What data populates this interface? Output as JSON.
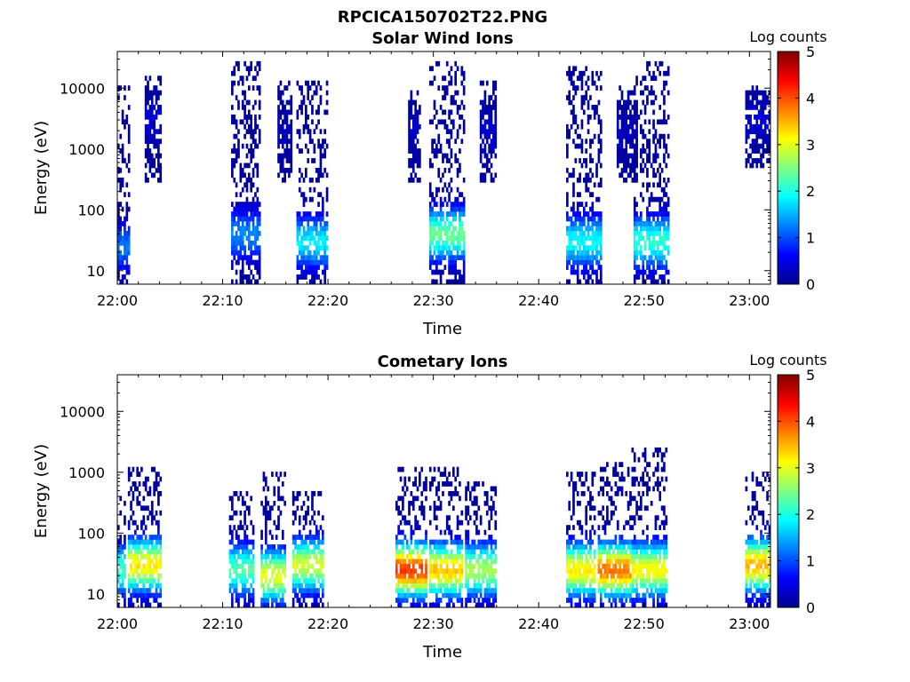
{
  "figure": {
    "title": "RPCICA150702T22.PNG"
  },
  "colors": {
    "colormap": "jet",
    "background": "#ffffff",
    "axes": "#000000"
  },
  "chart_data": [
    {
      "type": "heatmap",
      "title": "Solar Wind Ions",
      "xlabel": "Time",
      "ylabel": "Energy (eV)",
      "x_ticks": [
        "22:00",
        "22:10",
        "22:20",
        "22:30",
        "22:40",
        "22:50",
        "23:00"
      ],
      "y_ticks": [
        "10",
        "100",
        "1000",
        "10000"
      ],
      "y_scale": "log",
      "ylim": [
        6,
        40000
      ],
      "xlim_minutes": [
        0,
        62
      ],
      "colorbar": {
        "label": "Log counts",
        "ticks": [
          "0",
          "1",
          "2",
          "3",
          "4",
          "5"
        ],
        "range": [
          0,
          5
        ]
      },
      "bursts": [
        {
          "t_start": 0,
          "t_end": 1.2,
          "e_low": 6,
          "e_high": 12000,
          "peak": 1.2,
          "peak_energy": 25
        },
        {
          "t_start": 2.6,
          "t_end": 4.2,
          "e_low": 300,
          "e_high": 16000,
          "peak": 0.4,
          "peak_energy": 3000
        },
        {
          "t_start": 10.8,
          "t_end": 13.6,
          "e_low": 6,
          "e_high": 30000,
          "peak": 1.3,
          "peak_energy": 40
        },
        {
          "t_start": 15.2,
          "t_end": 16.6,
          "e_low": 300,
          "e_high": 14000,
          "peak": 0.3,
          "peak_energy": 2000
        },
        {
          "t_start": 17.0,
          "t_end": 20.0,
          "e_low": 6,
          "e_high": 14000,
          "peak": 1.8,
          "peak_energy": 30
        },
        {
          "t_start": 27.6,
          "t_end": 28.8,
          "e_low": 300,
          "e_high": 10000,
          "peak": 0.3,
          "peak_energy": 2000
        },
        {
          "t_start": 29.6,
          "t_end": 33.0,
          "e_low": 6,
          "e_high": 28000,
          "peak": 2.4,
          "peak_energy": 40
        },
        {
          "t_start": 34.4,
          "t_end": 36.0,
          "e_low": 300,
          "e_high": 14000,
          "peak": 0.4,
          "peak_energy": 2000
        },
        {
          "t_start": 42.6,
          "t_end": 46.0,
          "e_low": 6,
          "e_high": 24000,
          "peak": 1.9,
          "peak_energy": 30
        },
        {
          "t_start": 47.4,
          "t_end": 49.4,
          "e_low": 300,
          "e_high": 12000,
          "peak": 0.3,
          "peak_energy": 2000
        },
        {
          "t_start": 49.0,
          "t_end": 52.4,
          "e_low": 6,
          "e_high": 30000,
          "peak": 2.1,
          "peak_energy": 30
        },
        {
          "t_start": 59.6,
          "t_end": 62.0,
          "e_low": 500,
          "e_high": 12000,
          "peak": 0.4,
          "peak_energy": 3000
        }
      ]
    },
    {
      "type": "heatmap",
      "title": "Cometary Ions",
      "xlabel": "Time",
      "ylabel": "Energy (eV)",
      "x_ticks": [
        "22:00",
        "22:10",
        "22:20",
        "22:30",
        "22:40",
        "22:50",
        "23:00"
      ],
      "y_ticks": [
        "10",
        "100",
        "1000",
        "10000"
      ],
      "y_scale": "log",
      "ylim": [
        6,
        40000
      ],
      "xlim_minutes": [
        0,
        62
      ],
      "colorbar": {
        "label": "Log counts",
        "ticks": [
          "0",
          "1",
          "2",
          "3",
          "4",
          "5"
        ],
        "range": [
          0,
          5
        ]
      },
      "bursts": [
        {
          "t_start": 0,
          "t_end": 0.8,
          "e_low": 6,
          "e_high": 400,
          "peak": 2.2,
          "peak_energy": 25
        },
        {
          "t_start": 1.0,
          "t_end": 4.2,
          "e_low": 6,
          "e_high": 1200,
          "peak": 3.2,
          "peak_energy": 30
        },
        {
          "t_start": 10.6,
          "t_end": 13.0,
          "e_low": 6,
          "e_high": 500,
          "peak": 2.3,
          "peak_energy": 25
        },
        {
          "t_start": 13.6,
          "t_end": 16.0,
          "e_low": 6,
          "e_high": 1000,
          "peak": 3.0,
          "peak_energy": 20
        },
        {
          "t_start": 16.6,
          "t_end": 19.6,
          "e_low": 6,
          "e_high": 500,
          "peak": 2.9,
          "peak_energy": 30
        },
        {
          "t_start": 26.4,
          "t_end": 29.4,
          "e_low": 6,
          "e_high": 1300,
          "peak": 4.1,
          "peak_energy": 25
        },
        {
          "t_start": 29.6,
          "t_end": 32.8,
          "e_low": 6,
          "e_high": 1200,
          "peak": 3.4,
          "peak_energy": 25
        },
        {
          "t_start": 33.0,
          "t_end": 36.0,
          "e_low": 6,
          "e_high": 700,
          "peak": 2.7,
          "peak_energy": 25
        },
        {
          "t_start": 42.6,
          "t_end": 45.4,
          "e_low": 6,
          "e_high": 1100,
          "peak": 3.2,
          "peak_energy": 25
        },
        {
          "t_start": 45.6,
          "t_end": 48.8,
          "e_low": 6,
          "e_high": 1400,
          "peak": 3.8,
          "peak_energy": 25
        },
        {
          "t_start": 48.8,
          "t_end": 52.2,
          "e_low": 6,
          "e_high": 2400,
          "peak": 3.1,
          "peak_energy": 25
        },
        {
          "t_start": 59.6,
          "t_end": 62.0,
          "e_low": 6,
          "e_high": 1100,
          "peak": 3.5,
          "peak_energy": 30
        }
      ]
    }
  ]
}
